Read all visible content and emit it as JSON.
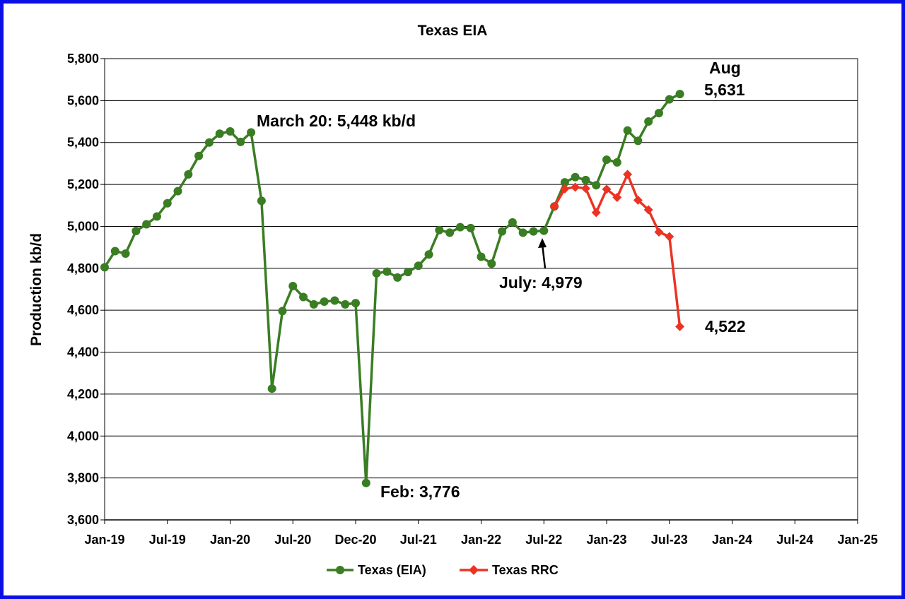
{
  "chart_data": {
    "type": "line",
    "title": "Texas EIA",
    "ylabel": "Production kb/d",
    "xlabel": "",
    "ylim": [
      3600,
      5800
    ],
    "y_ticks": [
      "3,600",
      "3,800",
      "4,000",
      "4,200",
      "4,400",
      "4,600",
      "4,800",
      "5,000",
      "5,200",
      "5,400",
      "5,600",
      "5,800"
    ],
    "x_ticks": [
      "Jan-19",
      "Jul-19",
      "Jan-20",
      "Jul-20",
      "Dec-20",
      "Jul-21",
      "Jan-22",
      "Jul-22",
      "Jan-23",
      "Jul-23",
      "Jan-24",
      "Jul-24",
      "Jan-25"
    ],
    "x_range": [
      "2019-01",
      "2025-01"
    ],
    "grid": "horizontal",
    "legend_position": "bottom",
    "series": [
      {
        "name": "Texas (EIA)",
        "color": "#3a7d23",
        "marker": "circle",
        "x": [
          "2019-01",
          "2019-02",
          "2019-03",
          "2019-04",
          "2019-05",
          "2019-06",
          "2019-07",
          "2019-08",
          "2019-09",
          "2019-10",
          "2019-11",
          "2019-12",
          "2020-01",
          "2020-02",
          "2020-03",
          "2020-04",
          "2020-05",
          "2020-06",
          "2020-07",
          "2020-08",
          "2020-09",
          "2020-10",
          "2020-11",
          "2020-12",
          "2021-01",
          "2021-02",
          "2021-03",
          "2021-04",
          "2021-05",
          "2021-06",
          "2021-07",
          "2021-08",
          "2021-09",
          "2021-10",
          "2021-11",
          "2021-12",
          "2022-01",
          "2022-02",
          "2022-03",
          "2022-04",
          "2022-05",
          "2022-06",
          "2022-07",
          "2022-08",
          "2022-09",
          "2022-10",
          "2022-11",
          "2022-12",
          "2023-01",
          "2023-02",
          "2023-03",
          "2023-04",
          "2023-05",
          "2023-06",
          "2023-07",
          "2023-08"
        ],
        "values": [
          4805,
          4882,
          4870,
          4978,
          5010,
          5047,
          5110,
          5168,
          5248,
          5336,
          5400,
          5442,
          5453,
          5403,
          5448,
          5122,
          4226,
          4596,
          4715,
          4663,
          4628,
          4641,
          4646,
          4628,
          4634,
          3776,
          4776,
          4784,
          4756,
          4782,
          4812,
          4866,
          4982,
          4970,
          4996,
          4992,
          4855,
          4822,
          4976,
          5019,
          4970,
          4976,
          4979,
          5095,
          5210,
          5235,
          5221,
          5196,
          5318,
          5305,
          5457,
          5408,
          5500,
          5540,
          5606,
          5631
        ]
      },
      {
        "name": "Texas RRC",
        "color": "#ec3323",
        "marker": "diamond",
        "x": [
          "2022-08",
          "2022-09",
          "2022-10",
          "2022-11",
          "2022-12",
          "2023-01",
          "2023-02",
          "2023-03",
          "2023-04",
          "2023-05",
          "2023-06",
          "2023-07",
          "2023-08"
        ],
        "values": [
          5095,
          5179,
          5187,
          5181,
          5066,
          5177,
          5138,
          5248,
          5125,
          5079,
          4973,
          4951,
          4522
        ]
      }
    ],
    "annotations": [
      {
        "text": "March 20: 5,448 kb/d"
      },
      {
        "text": "Feb: 3,776"
      },
      {
        "text": "July: 4,979"
      },
      {
        "text": "Aug"
      },
      {
        "text": "5,631"
      },
      {
        "text": "4,522"
      }
    ]
  }
}
